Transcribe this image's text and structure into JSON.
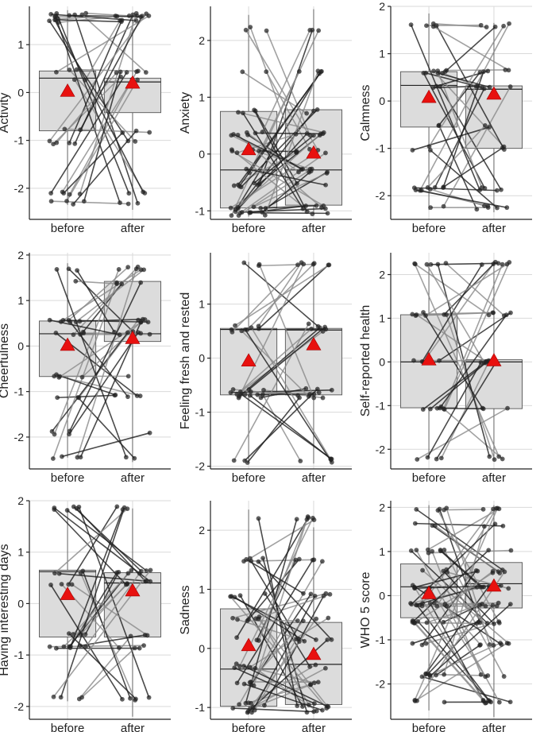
{
  "chart_data": [
    {
      "type": "boxplot",
      "ylabel": "Activity",
      "categories": [
        "before",
        "after"
      ],
      "ylim": [
        -2.65,
        1.8
      ],
      "yticks": [
        -2,
        -1,
        0,
        1
      ],
      "levels": [
        -2.3,
        -2.1,
        -1.05,
        -0.8,
        0.3,
        0.45,
        1.5,
        1.62
      ],
      "boxes": [
        {
          "q1": -0.8,
          "median": 0.3,
          "q3": 0.45,
          "min": -2.35,
          "max": 1.72,
          "mean": 0.03
        },
        {
          "q1": -0.42,
          "median": 0.22,
          "q3": 0.3,
          "min": -2.45,
          "max": 1.62,
          "mean": 0.2
        }
      ],
      "n_pairs": 34
    },
    {
      "type": "boxplot",
      "ylabel": "Anxiety",
      "categories": [
        "before",
        "after"
      ],
      "ylim": [
        -1.15,
        2.6
      ],
      "yticks": [
        -1,
        0,
        1,
        2
      ],
      "levels": [
        -1.05,
        -0.95,
        -0.55,
        -0.3,
        0.05,
        0.35,
        0.75,
        1.45,
        2.2
      ],
      "boxes": [
        {
          "q1": -0.95,
          "median": -0.28,
          "q3": 0.75,
          "min": -1.1,
          "max": 2.45,
          "mean": 0.08
        },
        {
          "q1": -0.9,
          "median": -0.28,
          "q3": 0.78,
          "min": -1.05,
          "max": 2.55,
          "mean": 0.02
        }
      ],
      "n_pairs": 46
    },
    {
      "type": "boxplot",
      "ylabel": "Calmness",
      "categories": [
        "before",
        "after"
      ],
      "ylim": [
        -2.5,
        2.0
      ],
      "yticks": [
        -2,
        -1,
        0,
        1,
        2
      ],
      "levels": [
        -2.25,
        -1.85,
        -1.0,
        -0.55,
        0.3,
        0.62,
        1.6
      ],
      "boxes": [
        {
          "q1": -0.55,
          "median": 0.33,
          "q3": 0.62,
          "min": -2.3,
          "max": 1.85,
          "mean": 0.08
        },
        {
          "q1": -1.0,
          "median": 0.25,
          "q3": 0.32,
          "min": -2.35,
          "max": 1.65,
          "mean": 0.15
        }
      ],
      "n_pairs": 32
    },
    {
      "type": "boxplot",
      "ylabel": "Cheerfulness",
      "categories": [
        "before",
        "after"
      ],
      "ylim": [
        -2.7,
        2.05
      ],
      "yticks": [
        -2,
        -1,
        0,
        1,
        2
      ],
      "levels": [
        -2.45,
        -1.9,
        -1.1,
        -0.65,
        0.28,
        0.55,
        1.4,
        1.7
      ],
      "boxes": [
        {
          "q1": -0.67,
          "median": 0.27,
          "q3": 0.55,
          "min": -2.45,
          "max": 1.82,
          "mean": 0.02
        },
        {
          "q1": 0.1,
          "median": 0.27,
          "q3": 1.42,
          "min": -2.55,
          "max": 1.62,
          "mean": 0.17
        }
      ],
      "n_pairs": 32
    },
    {
      "type": "boxplot",
      "ylabel": "Feeling fresh and rested",
      "categories": [
        "before",
        "after"
      ],
      "ylim": [
        -2.05,
        1.95
      ],
      "yticks": [
        -2,
        -1,
        0,
        1
      ],
      "levels": [
        -1.9,
        -0.7,
        -0.6,
        0.52,
        0.6,
        1.75
      ],
      "boxes": [
        {
          "q1": -0.68,
          "median": 0.53,
          "q3": 0.55,
          "min": -1.9,
          "max": 1.78,
          "mean": -0.05
        },
        {
          "q1": -0.68,
          "median": 0.52,
          "q3": 0.55,
          "min": -1.95,
          "max": 1.78,
          "mean": 0.25
        }
      ],
      "n_pairs": 30
    },
    {
      "type": "boxplot",
      "ylabel": "Self-reported health",
      "categories": [
        "before",
        "after"
      ],
      "ylim": [
        -2.45,
        2.5
      ],
      "yticks": [
        -2,
        -1,
        0,
        1,
        2
      ],
      "levels": [
        -2.2,
        -1.05,
        0.0,
        1.1,
        2.25
      ],
      "boxes": [
        {
          "q1": -1.05,
          "median": 0.0,
          "q3": 1.08,
          "min": -2.2,
          "max": 2.25,
          "mean": 0.05
        },
        {
          "q1": -1.07,
          "median": 0.0,
          "q3": 0.05,
          "min": -2.25,
          "max": 2.32,
          "mean": 0.03
        }
      ],
      "n_pairs": 28
    },
    {
      "type": "boxplot",
      "ylabel": "Having interesting days",
      "categories": [
        "before",
        "after"
      ],
      "ylim": [
        -2.25,
        2.0
      ],
      "yticks": [
        -2,
        -1,
        0,
        1,
        2
      ],
      "levels": [
        -1.85,
        -0.85,
        -0.6,
        0.4,
        0.62,
        1.85
      ],
      "boxes": [
        {
          "q1": -0.65,
          "median": 0.62,
          "q3": 0.65,
          "min": -1.9,
          "max": 1.85,
          "mean": 0.18
        },
        {
          "q1": -0.65,
          "median": 0.4,
          "q3": 0.6,
          "min": -2.2,
          "max": 1.85,
          "mean": 0.25
        }
      ],
      "n_pairs": 30
    },
    {
      "type": "boxplot",
      "ylabel": "Sadness",
      "categories": [
        "before",
        "after"
      ],
      "ylim": [
        -1.2,
        2.5
      ],
      "yticks": [
        -1,
        0,
        1,
        2
      ],
      "levels": [
        -1.05,
        -0.95,
        -0.6,
        -0.3,
        0.15,
        0.5,
        0.9,
        1.5,
        2.2
      ],
      "boxes": [
        {
          "q1": -0.98,
          "median": -0.35,
          "q3": 0.67,
          "min": -1.12,
          "max": 2.35,
          "mean": 0.05
        },
        {
          "q1": -0.95,
          "median": -0.27,
          "q3": 0.44,
          "min": -1.1,
          "max": 2.05,
          "mean": -0.1
        }
      ],
      "n_pairs": 46
    },
    {
      "type": "boxplot",
      "ylabel": "WHO 5 score",
      "categories": [
        "before",
        "after"
      ],
      "ylim": [
        -2.8,
        2.15
      ],
      "yticks": [
        -2,
        -1,
        0,
        1,
        2
      ],
      "levels": [
        -2.4,
        -1.8,
        -1.1,
        -0.6,
        -0.2,
        0.2,
        0.55,
        1.0,
        1.6,
        1.95
      ],
      "boxes": [
        {
          "q1": -0.5,
          "median": 0.2,
          "q3": 0.72,
          "min": -2.6,
          "max": 2.05,
          "mean": 0.05
        },
        {
          "q1": -0.28,
          "median": 0.27,
          "q3": 0.75,
          "min": -2.75,
          "max": 2.05,
          "mean": 0.22
        }
      ],
      "n_pairs": 60
    }
  ]
}
